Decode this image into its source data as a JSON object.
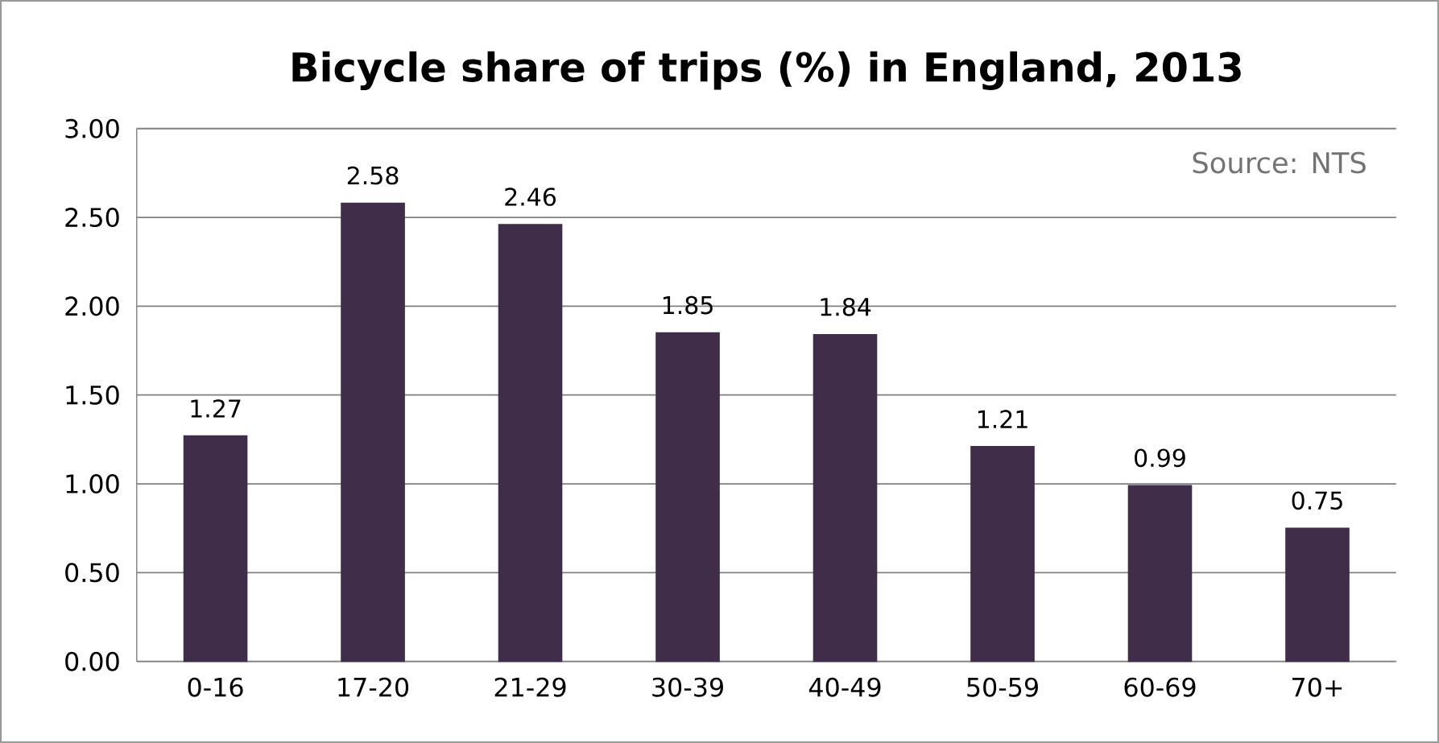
{
  "chart_data": {
    "type": "bar",
    "title": "Bicycle share of trips (%) in England, 2013",
    "categories": [
      "0-16",
      "17-20",
      "21-29",
      "30-39",
      "40-49",
      "50-59",
      "60-69",
      "70+"
    ],
    "values": [
      1.27,
      2.58,
      2.46,
      1.85,
      1.84,
      1.21,
      0.99,
      0.75
    ],
    "color": "#3f2d4a",
    "data_labels": true,
    "grid": "y",
    "ylim": [
      0,
      3
    ],
    "yticks": [
      {
        "value": 0,
        "label": "0.00"
      },
      {
        "value": 0.5,
        "label": "0.50"
      },
      {
        "value": 1,
        "label": "1.00"
      },
      {
        "value": 1.5,
        "label": "1.50"
      },
      {
        "value": 2,
        "label": "2.00"
      },
      {
        "value": 2.5,
        "label": "2.50"
      },
      {
        "value": 3,
        "label": "3.00"
      }
    ],
    "annotations": [
      "Source: NTS"
    ]
  }
}
